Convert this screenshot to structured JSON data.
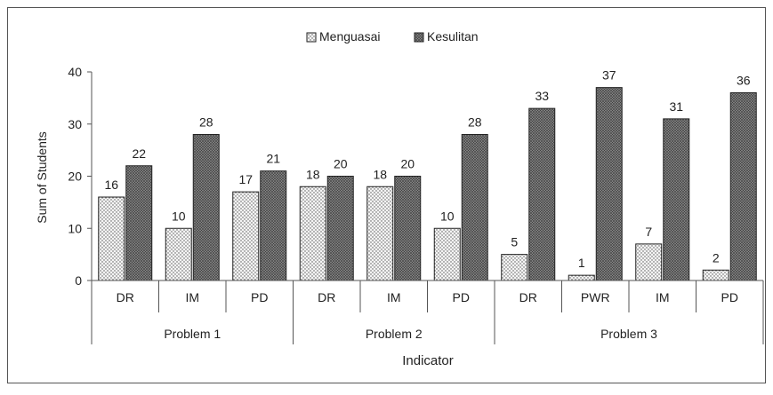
{
  "chart_data": {
    "type": "bar",
    "title": "",
    "xlabel": "Indicator",
    "ylabel": "Sum of Students",
    "ylim": [
      0,
      40
    ],
    "yticks": [
      0,
      10,
      20,
      30,
      40
    ],
    "grid": false,
    "legend": "top-center",
    "categories": [
      "DR",
      "IM",
      "PD",
      "DR",
      "IM",
      "PD",
      "DR",
      "PWR",
      "IM",
      "PD"
    ],
    "groups": [
      {
        "label": "Problem 1",
        "count": 3
      },
      {
        "label": "Problem 2",
        "count": 3
      },
      {
        "label": "Problem 3",
        "count": 4
      }
    ],
    "series": [
      {
        "name": "Menguasai",
        "values": [
          16,
          10,
          17,
          18,
          18,
          10,
          5,
          1,
          7,
          2
        ],
        "color": "#f2f2f2",
        "pattern": "dots"
      },
      {
        "name": "Kesulitan",
        "values": [
          22,
          28,
          21,
          20,
          20,
          28,
          33,
          37,
          31,
          36
        ],
        "color": "#6b6b6b",
        "pattern": "crosshatch"
      }
    ]
  }
}
